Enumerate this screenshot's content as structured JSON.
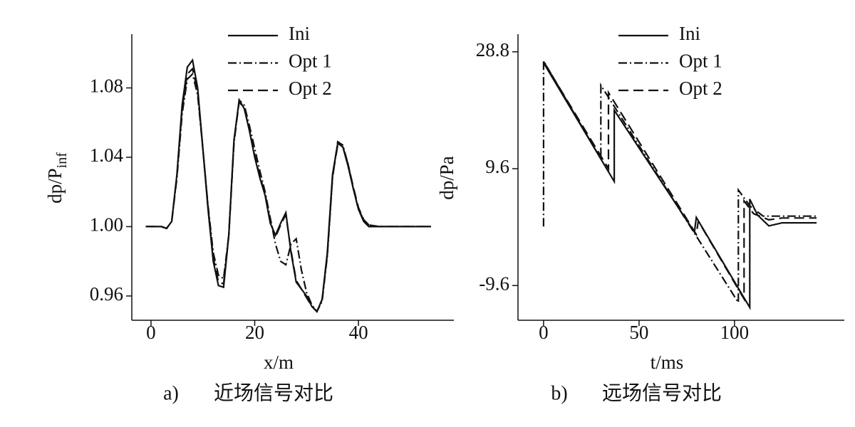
{
  "chart_data": [
    {
      "type": "line",
      "ylabel": "dp/P",
      "ylabel_subscript": "inf",
      "xlabel": "x/m",
      "caption_label": "a)",
      "caption": "近场信号对比",
      "xlim": [
        -3.7,
        58.4
      ],
      "xticks": [
        0,
        20,
        40
      ],
      "ylim": [
        0.946,
        1.111
      ],
      "yticks": [
        0.96,
        {
          "value": 1,
          "label": "1.00"
        },
        1.04,
        1.08
      ],
      "series": [
        {
          "name": "Ini",
          "color": "#111111",
          "linestyle": "solid",
          "x": [
            -1,
            0,
            1,
            2,
            3,
            4,
            5,
            6,
            7,
            8,
            9,
            10,
            11,
            12,
            13,
            14,
            15,
            16,
            17,
            18,
            19,
            20,
            21,
            22,
            23,
            24,
            25,
            26,
            27,
            28,
            29,
            30,
            31,
            32,
            33,
            34,
            35,
            36,
            37,
            38,
            39,
            40,
            41,
            42,
            44,
            46,
            48,
            50,
            52,
            54
          ],
          "values": [
            1.0,
            1.0,
            1.0,
            1.0,
            0.999,
            1.003,
            1.03,
            1.07,
            1.092,
            1.096,
            1.08,
            1.045,
            1.01,
            0.98,
            0.966,
            0.965,
            0.995,
            1.05,
            1.073,
            1.068,
            1.055,
            1.04,
            1.028,
            1.018,
            1.002,
            0.995,
            1.002,
            1.008,
            0.985,
            0.968,
            0.964,
            0.96,
            0.954,
            0.951,
            0.958,
            0.985,
            1.03,
            1.048,
            1.046,
            1.035,
            1.022,
            1.01,
            1.003,
            1.0,
            1.0,
            1.0,
            1.0,
            1.0,
            1.0,
            1.0
          ]
        },
        {
          "name": "Opt 1",
          "color": "#111111",
          "linestyle": "dashdot",
          "x": [
            -1,
            0,
            1,
            2,
            3,
            4,
            5,
            6,
            7,
            8,
            9,
            10,
            11,
            12,
            13,
            14,
            15,
            16,
            17,
            18,
            19,
            20,
            21,
            22,
            23,
            24,
            25,
            26,
            27,
            28,
            29,
            30,
            31,
            32,
            33,
            34,
            35,
            36,
            37,
            38,
            39,
            40,
            41,
            42,
            44,
            46,
            48,
            50,
            52,
            54
          ],
          "values": [
            1.0,
            1.0,
            1.0,
            1.0,
            0.999,
            1.003,
            1.028,
            1.065,
            1.085,
            1.088,
            1.076,
            1.045,
            1.012,
            0.985,
            0.972,
            0.97,
            0.995,
            1.048,
            1.073,
            1.07,
            1.058,
            1.045,
            1.032,
            1.02,
            1.005,
            0.99,
            0.98,
            0.978,
            0.99,
            0.993,
            0.975,
            0.962,
            0.955,
            0.951,
            0.957,
            0.983,
            1.028,
            1.049,
            1.047,
            1.036,
            1.022,
            1.01,
            1.004,
            1.001,
            1.0,
            1.0,
            1.0,
            1.0,
            1.0,
            1.0
          ]
        },
        {
          "name": "Opt 2",
          "color": "#111111",
          "linestyle": "dashed",
          "x": [
            -1,
            0,
            1,
            2,
            3,
            4,
            5,
            6,
            7,
            8,
            9,
            10,
            11,
            12,
            13,
            14,
            15,
            16,
            17,
            18,
            19,
            20,
            21,
            22,
            23,
            24,
            25,
            26,
            27,
            28,
            29,
            30,
            31,
            32,
            33,
            34,
            35,
            36,
            37,
            38,
            39,
            40,
            41,
            42,
            44,
            46,
            48,
            50,
            52,
            54
          ],
          "values": [
            1.0,
            1.0,
            1.0,
            1.0,
            0.999,
            1.003,
            1.029,
            1.068,
            1.088,
            1.091,
            1.078,
            1.045,
            1.011,
            0.982,
            0.968,
            0.967,
            0.995,
            1.049,
            1.072,
            1.068,
            1.056,
            1.041,
            1.029,
            1.019,
            1.003,
            0.994,
            1.001,
            1.007,
            0.986,
            0.969,
            0.964,
            0.959,
            0.954,
            0.951,
            0.958,
            0.984,
            1.029,
            1.047,
            1.046,
            1.036,
            1.023,
            1.011,
            1.004,
            1.001,
            1.0,
            1.0,
            1.0,
            1.0,
            1.0,
            1.0
          ]
        }
      ]
    },
    {
      "type": "line",
      "ylabel": "dp/Pa",
      "xlabel": "t/ms",
      "caption_label": "b)",
      "caption": "远场信号对比",
      "xlim": [
        -13.4,
        157.5
      ],
      "xticks": [
        0,
        50,
        100
      ],
      "ylim": [
        -15.3,
        31.7
      ],
      "yticks": [
        -9.6,
        9.6,
        28.8
      ],
      "series": [
        {
          "name": "Ini",
          "color": "#111111",
          "linestyle": "solid",
          "x": [
            0,
            37,
            37,
            79,
            80,
            108,
            108,
            112,
            118,
            125,
            143
          ],
          "values": [
            27.0,
            7.5,
            19.2,
            -0.8,
            1.6,
            -13.2,
            4.6,
            2.0,
            0.2,
            0.7,
            0.7
          ]
        },
        {
          "name": "Opt 1",
          "color": "#111111",
          "linestyle": "dashdot",
          "x": [
            0,
            0,
            30,
            30,
            102,
            102,
            108,
            115,
            125,
            143
          ],
          "values": [
            0.1,
            27.3,
            11.2,
            23.3,
            -12.4,
            6.1,
            3.5,
            1.8,
            1.8,
            1.8
          ]
        },
        {
          "name": "Opt 2",
          "color": "#111111",
          "linestyle": "dashed",
          "x": [
            0,
            34,
            34,
            80,
            81,
            105,
            105,
            110,
            118,
            125,
            143
          ],
          "values": [
            27.2,
            9.6,
            22.1,
            -1.2,
            1.0,
            -11.8,
            4.3,
            2.2,
            1.2,
            1.5,
            1.5
          ]
        }
      ]
    }
  ]
}
